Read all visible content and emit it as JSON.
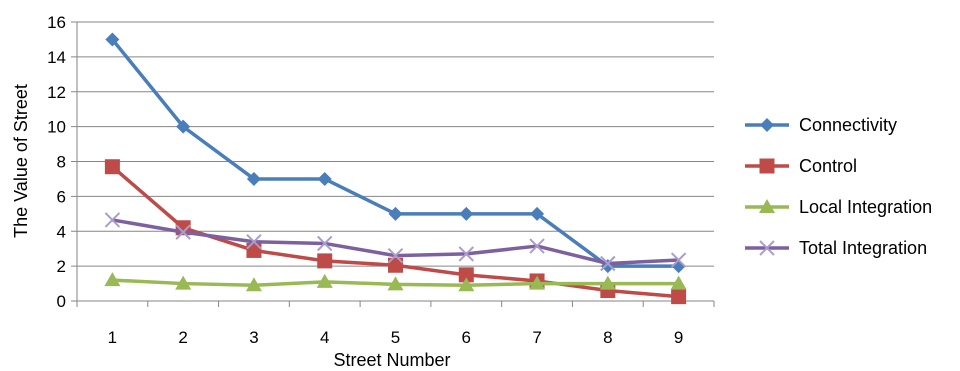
{
  "chart_data": {
    "type": "line",
    "title": "",
    "xlabel": "Street Number",
    "ylabel": "The Value of Street",
    "categories": [
      "1",
      "2",
      "3",
      "4",
      "5",
      "6",
      "7",
      "8",
      "9"
    ],
    "ylim": [
      0,
      16
    ],
    "yticks": [
      "0",
      "2",
      "4",
      "6",
      "8",
      "10",
      "12",
      "14",
      "16"
    ],
    "grid": "horizontal",
    "legend_position": "right",
    "series": [
      {
        "name": "Connectivity",
        "color": "#4a7ebb",
        "marker": "diamond",
        "values": [
          15,
          10,
          7,
          7,
          5,
          5,
          5,
          2,
          2
        ]
      },
      {
        "name": "Control",
        "color": "#be4b48",
        "marker": "square",
        "values": [
          7.7,
          4.2,
          2.9,
          2.3,
          2.05,
          1.5,
          1.15,
          0.6,
          0.25
        ]
      },
      {
        "name": "Local Integration",
        "color": "#98b954",
        "marker": "triangle",
        "values": [
          1.2,
          1.0,
          0.9,
          1.1,
          0.95,
          0.9,
          1.0,
          1.0,
          1.0
        ]
      },
      {
        "name": "Total Integration",
        "color": "#7d60a0",
        "marker": "x",
        "values": [
          4.65,
          3.95,
          3.4,
          3.3,
          2.6,
          2.7,
          3.15,
          2.15,
          2.35
        ]
      }
    ]
  }
}
